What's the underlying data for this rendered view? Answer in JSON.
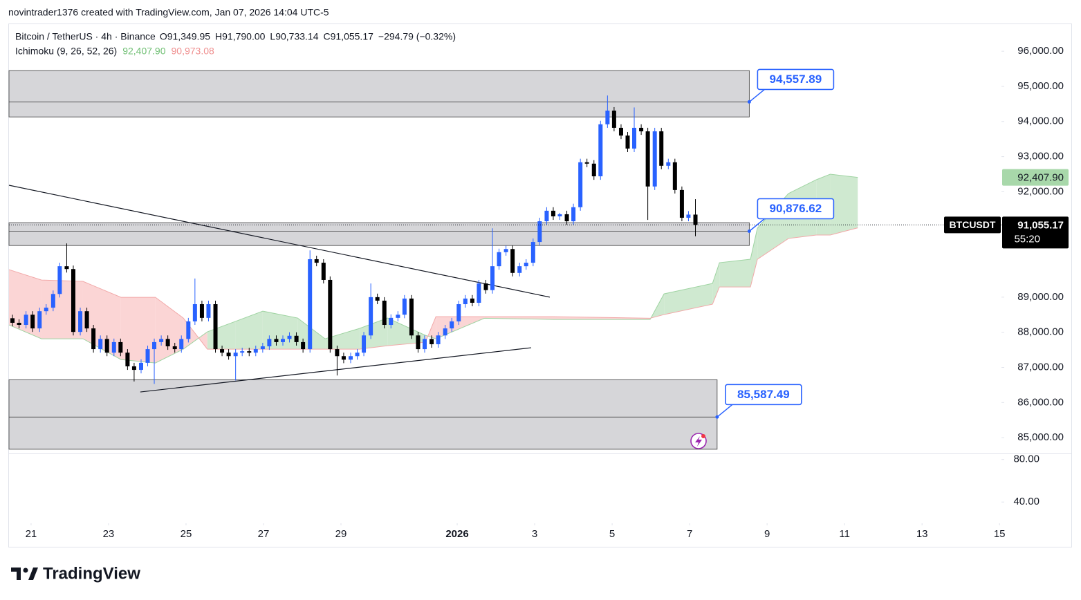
{
  "header": "novintrader1376 created with TradingView.com, Jan 07, 2026 14:04 UTC-5",
  "legend": {
    "symbol": "Bitcoin / TetherUS · 4h · Binance",
    "open": "O91,349.95",
    "high": "H91,790.00",
    "low": "L90,733.14",
    "close": "C91,055.17",
    "change": "−294.79 (−0.32%)"
  },
  "ichimoku": {
    "name": "Ichimoku",
    "params": "(9, 26, 52, 26)",
    "a_label": "92,407.90",
    "b_label": "90,973.08"
  },
  "footer": {
    "brand": "TradingView"
  },
  "chart_data": {
    "type": "candlestick",
    "up_color": "#2962ff",
    "down_color": "#000000",
    "xlim": [
      -0.57,
      25.05
    ],
    "xticks": [
      {
        "value": 0,
        "label": "21"
      },
      {
        "value": 2,
        "label": "23"
      },
      {
        "value": 4,
        "label": "25"
      },
      {
        "value": 6,
        "label": "27"
      },
      {
        "value": 8,
        "label": "29"
      },
      {
        "value": 11,
        "label": "2026"
      },
      {
        "value": 13,
        "label": "3"
      },
      {
        "value": 15,
        "label": "5"
      },
      {
        "value": 17,
        "label": "7"
      },
      {
        "value": 19,
        "label": "9"
      },
      {
        "value": 21,
        "label": "11"
      },
      {
        "value": 23,
        "label": "13"
      },
      {
        "value": 25,
        "label": "15"
      }
    ],
    "ylim": [
      84570,
      96770
    ],
    "yticks": [
      {
        "value": 96000,
        "label": "96,000.00"
      },
      {
        "value": 95000,
        "label": "95,000.00"
      },
      {
        "value": 94000,
        "label": "94,000.00"
      },
      {
        "value": 93000,
        "label": "93,000.00"
      },
      {
        "value": 92000,
        "label": "92,000.00"
      },
      {
        "value": 89000,
        "label": "89,000.00"
      },
      {
        "value": 88000,
        "label": "88,000.00"
      },
      {
        "value": 87000,
        "label": "87,000.00"
      },
      {
        "value": 86000,
        "label": "86,000.00"
      },
      {
        "value": 85000,
        "label": "85,000.00"
      }
    ],
    "grid": false,
    "x": [
      -0.48,
      -0.31,
      -0.13,
      0.04,
      0.22,
      0.39,
      0.57,
      0.74,
      0.92,
      1.09,
      1.27,
      1.44,
      1.61,
      1.79,
      1.96,
      2.14,
      2.31,
      2.49,
      2.66,
      2.84,
      3.01,
      3.18,
      3.36,
      3.53,
      3.71,
      3.88,
      4.06,
      4.23,
      4.41,
      4.58,
      4.76,
      4.93,
      5.1,
      5.28,
      5.45,
      5.63,
      5.8,
      5.98,
      6.15,
      6.33,
      6.5,
      6.67,
      6.85,
      7.02,
      7.2,
      7.37,
      7.55,
      7.72,
      7.9,
      8.07,
      8.25,
      8.42,
      8.59,
      8.77,
      8.94,
      9.12,
      9.29,
      9.47,
      9.64,
      9.82,
      9.99,
      10.16,
      10.34,
      10.51,
      10.69,
      10.86,
      11.04,
      11.21,
      11.39,
      11.56,
      11.74,
      11.91,
      12.08,
      12.26,
      12.43,
      12.61,
      12.78,
      12.96,
      13.13,
      13.31,
      13.48,
      13.65,
      13.83,
      14.0,
      14.18,
      14.35,
      14.53,
      14.7,
      14.88,
      15.05,
      15.23,
      15.4,
      15.57,
      15.75,
      15.92,
      16.1,
      16.27,
      16.45,
      16.62,
      16.8,
      16.97,
      17.15
    ],
    "open": [
      88400,
      88270,
      88210,
      88500,
      88110,
      88600,
      88700,
      89090,
      89880,
      89800,
      88010,
      88600,
      88110,
      87520,
      87810,
      87420,
      87720,
      87420,
      87030,
      86930,
      87130,
      87520,
      87720,
      87810,
      87600,
      87520,
      87810,
      88310,
      88800,
      88410,
      88800,
      87520,
      87420,
      87320,
      87420,
      87460,
      87420,
      87520,
      87600,
      87810,
      87720,
      87810,
      87900,
      87720,
      87520,
      90080,
      89980,
      89490,
      87520,
      87320,
      87220,
      87320,
      87420,
      87910,
      89000,
      88900,
      88210,
      88410,
      88500,
      88960,
      87910,
      87520,
      87810,
      87660,
      87910,
      88110,
      88310,
      88800,
      88960,
      88840,
      89390,
      89200,
      89880,
      90280,
      90370,
      89690,
      89880,
      89980,
      90570,
      91160,
      91460,
      91300,
      91360,
      91160,
      91560,
      92840,
      92800,
      92440,
      93920,
      94310,
      93820,
      93600,
      93230,
      93820,
      93720,
      92150,
      93720,
      92740,
      92840,
      92050,
      91260,
      91349.95
    ],
    "high": [
      88500,
      88370,
      88600,
      88600,
      88700,
      88800,
      89190,
      89980,
      90530,
      89900,
      88700,
      88700,
      88210,
      87910,
      87910,
      87820,
      87820,
      87520,
      87130,
      87230,
      87620,
      87820,
      87910,
      87910,
      87700,
      87910,
      88410,
      89530,
      88900,
      88900,
      88900,
      87620,
      87520,
      87520,
      87560,
      87560,
      87620,
      87700,
      87910,
      87910,
      87910,
      88000,
      88000,
      87820,
      90330,
      90180,
      90080,
      89590,
      87620,
      87420,
      87420,
      87520,
      88010,
      89390,
      89100,
      89000,
      88510,
      88600,
      89060,
      89060,
      88010,
      87910,
      87910,
      88010,
      88210,
      88410,
      88900,
      89060,
      89060,
      89490,
      89490,
      90960,
      90380,
      90470,
      90470,
      89980,
      90080,
      90670,
      91260,
      91560,
      91560,
      91400,
      91460,
      91660,
      92940,
      92940,
      92900,
      94020,
      94740,
      94410,
      93920,
      93700,
      94400,
      93920,
      93820,
      93820,
      93820,
      92940,
      92940,
      92150,
      91450,
      91790
    ],
    "low": [
      88170,
      88110,
      88110,
      88010,
      88010,
      88500,
      88600,
      88990,
      89700,
      87910,
      87910,
      88010,
      87420,
      87420,
      87320,
      87320,
      87320,
      86930,
      86600,
      86830,
      87030,
      86530,
      87620,
      87500,
      87420,
      87420,
      87710,
      88210,
      88310,
      88310,
      87420,
      87320,
      87220,
      86630,
      87320,
      87320,
      87320,
      87420,
      87500,
      87620,
      87620,
      87710,
      87620,
      87420,
      87420,
      89880,
      89390,
      87420,
      86770,
      87120,
      87120,
      87220,
      87320,
      87810,
      88800,
      88110,
      88110,
      88310,
      88400,
      87810,
      87420,
      87420,
      87560,
      87560,
      87810,
      88010,
      88210,
      88700,
      88740,
      88740,
      89100,
      89100,
      89780,
      90180,
      89590,
      89590,
      89780,
      89880,
      90470,
      91060,
      91200,
      91200,
      91060,
      91060,
      91460,
      92700,
      92340,
      92340,
      93820,
      93720,
      93500,
      93130,
      93130,
      93620,
      91200,
      92050,
      92640,
      92640,
      91950,
      91160,
      91160,
      90733.14
    ],
    "close": [
      88270,
      88210,
      88500,
      88110,
      88600,
      88700,
      89090,
      89880,
      89800,
      88010,
      88600,
      88110,
      87520,
      87810,
      87420,
      87720,
      87420,
      87030,
      86930,
      87130,
      87520,
      87720,
      87810,
      87600,
      87520,
      87810,
      88310,
      88800,
      88410,
      88800,
      87520,
      87420,
      87320,
      87420,
      87460,
      87420,
      87520,
      87600,
      87810,
      87720,
      87810,
      87900,
      87720,
      87520,
      90080,
      89980,
      89490,
      87520,
      87320,
      87220,
      87320,
      87420,
      87910,
      89000,
      88900,
      88210,
      88410,
      88500,
      88960,
      87910,
      87520,
      87810,
      87660,
      87910,
      88110,
      88310,
      88800,
      88960,
      88840,
      89390,
      89200,
      89880,
      90280,
      90370,
      89690,
      89880,
      89980,
      90570,
      91160,
      91460,
      91300,
      91360,
      91160,
      91560,
      92840,
      92800,
      92440,
      93920,
      94310,
      93820,
      93600,
      93230,
      93820,
      93720,
      92150,
      93720,
      92740,
      92840,
      92050,
      91260,
      91349.95,
      91055.17
    ],
    "cloud": {
      "up_color": "#cfe9d0",
      "down_color": "#fbd5d5",
      "a_color": "#9fd4a2",
      "b_color": "#f2a9a9",
      "x": [
        -0.57,
        0.27,
        1.34,
        2.32,
        3.21,
        3.93,
        4.55,
        5.27,
        5.98,
        6.88,
        7.59,
        8.48,
        9.2,
        10.18,
        10.45,
        11.7,
        13.48,
        15.98,
        16.34,
        17.59,
        17.77,
        18.57,
        18.75,
        19.55,
        20.27,
        20.63,
        21.34
      ],
      "span_a": [
        88209,
        87815,
        87815,
        87224,
        87126,
        87520,
        88012,
        88307,
        88602,
        88406,
        87815,
        88110,
        88406,
        87913,
        87815,
        88400,
        88366,
        88366,
        89094,
        89390,
        89980,
        90079,
        90965,
        91949,
        92343,
        92500,
        92407.9
      ],
      "span_b": [
        89783,
        89488,
        89449,
        88996,
        88996,
        88406,
        87520,
        87520,
        87520,
        87520,
        87520,
        87520,
        87618,
        87717,
        88445,
        88445,
        88445,
        88400,
        88504,
        88799,
        89291,
        89291,
        90079,
        90669,
        90768,
        90768,
        90973.08
      ]
    },
    "zones": [
      {
        "top": 95450,
        "bottom": 94130,
        "mid": 94557.89,
        "label": "94,557.89",
        "x_start": -0.57,
        "x_end": 18.54
      },
      {
        "top": 91120,
        "bottom": 90470,
        "mid": 90876.62,
        "label": "90,876.62",
        "x_start": -0.57,
        "x_end": 18.54
      },
      {
        "top": 86650,
        "bottom": 84670,
        "mid": 85587.49,
        "label": "85,587.49",
        "x_start": -0.57,
        "x_end": 17.71
      }
    ],
    "trend_lines": [
      {
        "x": [
          -0.57,
          13.39
        ],
        "y": [
          92185,
          89000
        ]
      },
      {
        "x": [
          2.82,
          12.91
        ],
        "y": [
          86300,
          87560
        ]
      }
    ],
    "last_price": {
      "value": 91055.17,
      "label": "91,055.17",
      "countdown": "55:20",
      "symbol": "BTCUSDT"
    },
    "pane2": {
      "ylim": [
        20,
        85
      ],
      "yticks": [
        {
          "value": 80,
          "label": "80.00"
        },
        {
          "value": 40,
          "label": "40.00"
        }
      ]
    }
  }
}
